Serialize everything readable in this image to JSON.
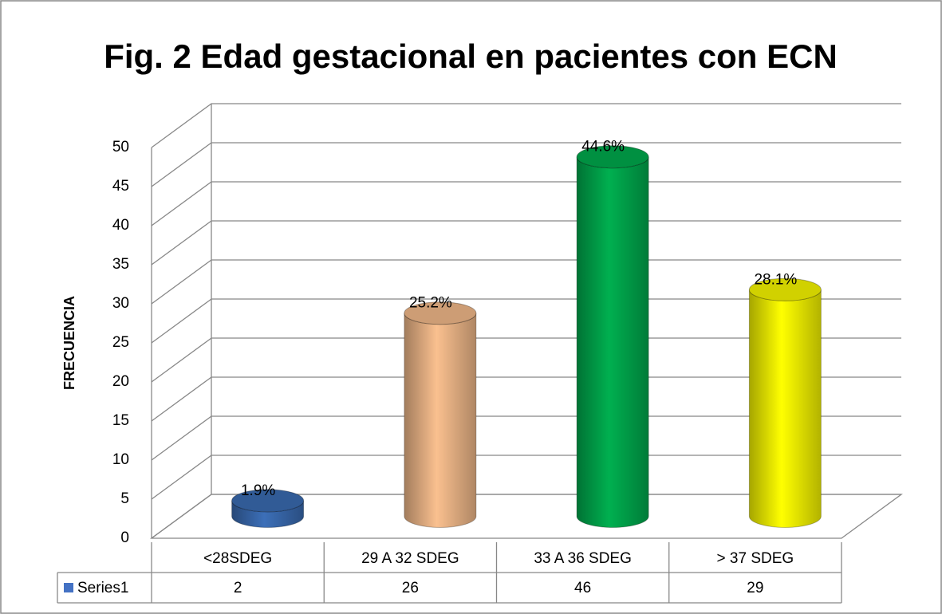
{
  "chart_data": {
    "type": "bar3d",
    "title": "Fig. 2 Edad gestacional  en pacientes con ECN",
    "y_label": "FRECUENCIA",
    "categories": [
      "<28SDEG",
      "29 A 32 SDEG",
      "33 A 36 SDEG",
      "> 37 SDEG"
    ],
    "series": [
      {
        "name": "Series1",
        "color": "#4472c4",
        "colors": [
          "#3c6fb8",
          "#fac08f",
          "#00b050",
          "#ffff00"
        ],
        "values": [
          2,
          26,
          46,
          29
        ]
      }
    ],
    "annotations": [
      "1.9%",
      "25.2%",
      "44.6%",
      "28.1%"
    ],
    "ylim": [
      0,
      50
    ],
    "yticks": [
      0,
      5,
      10,
      15,
      20,
      25,
      30,
      35,
      40,
      45,
      50
    ],
    "grid": true,
    "data_table": true
  }
}
